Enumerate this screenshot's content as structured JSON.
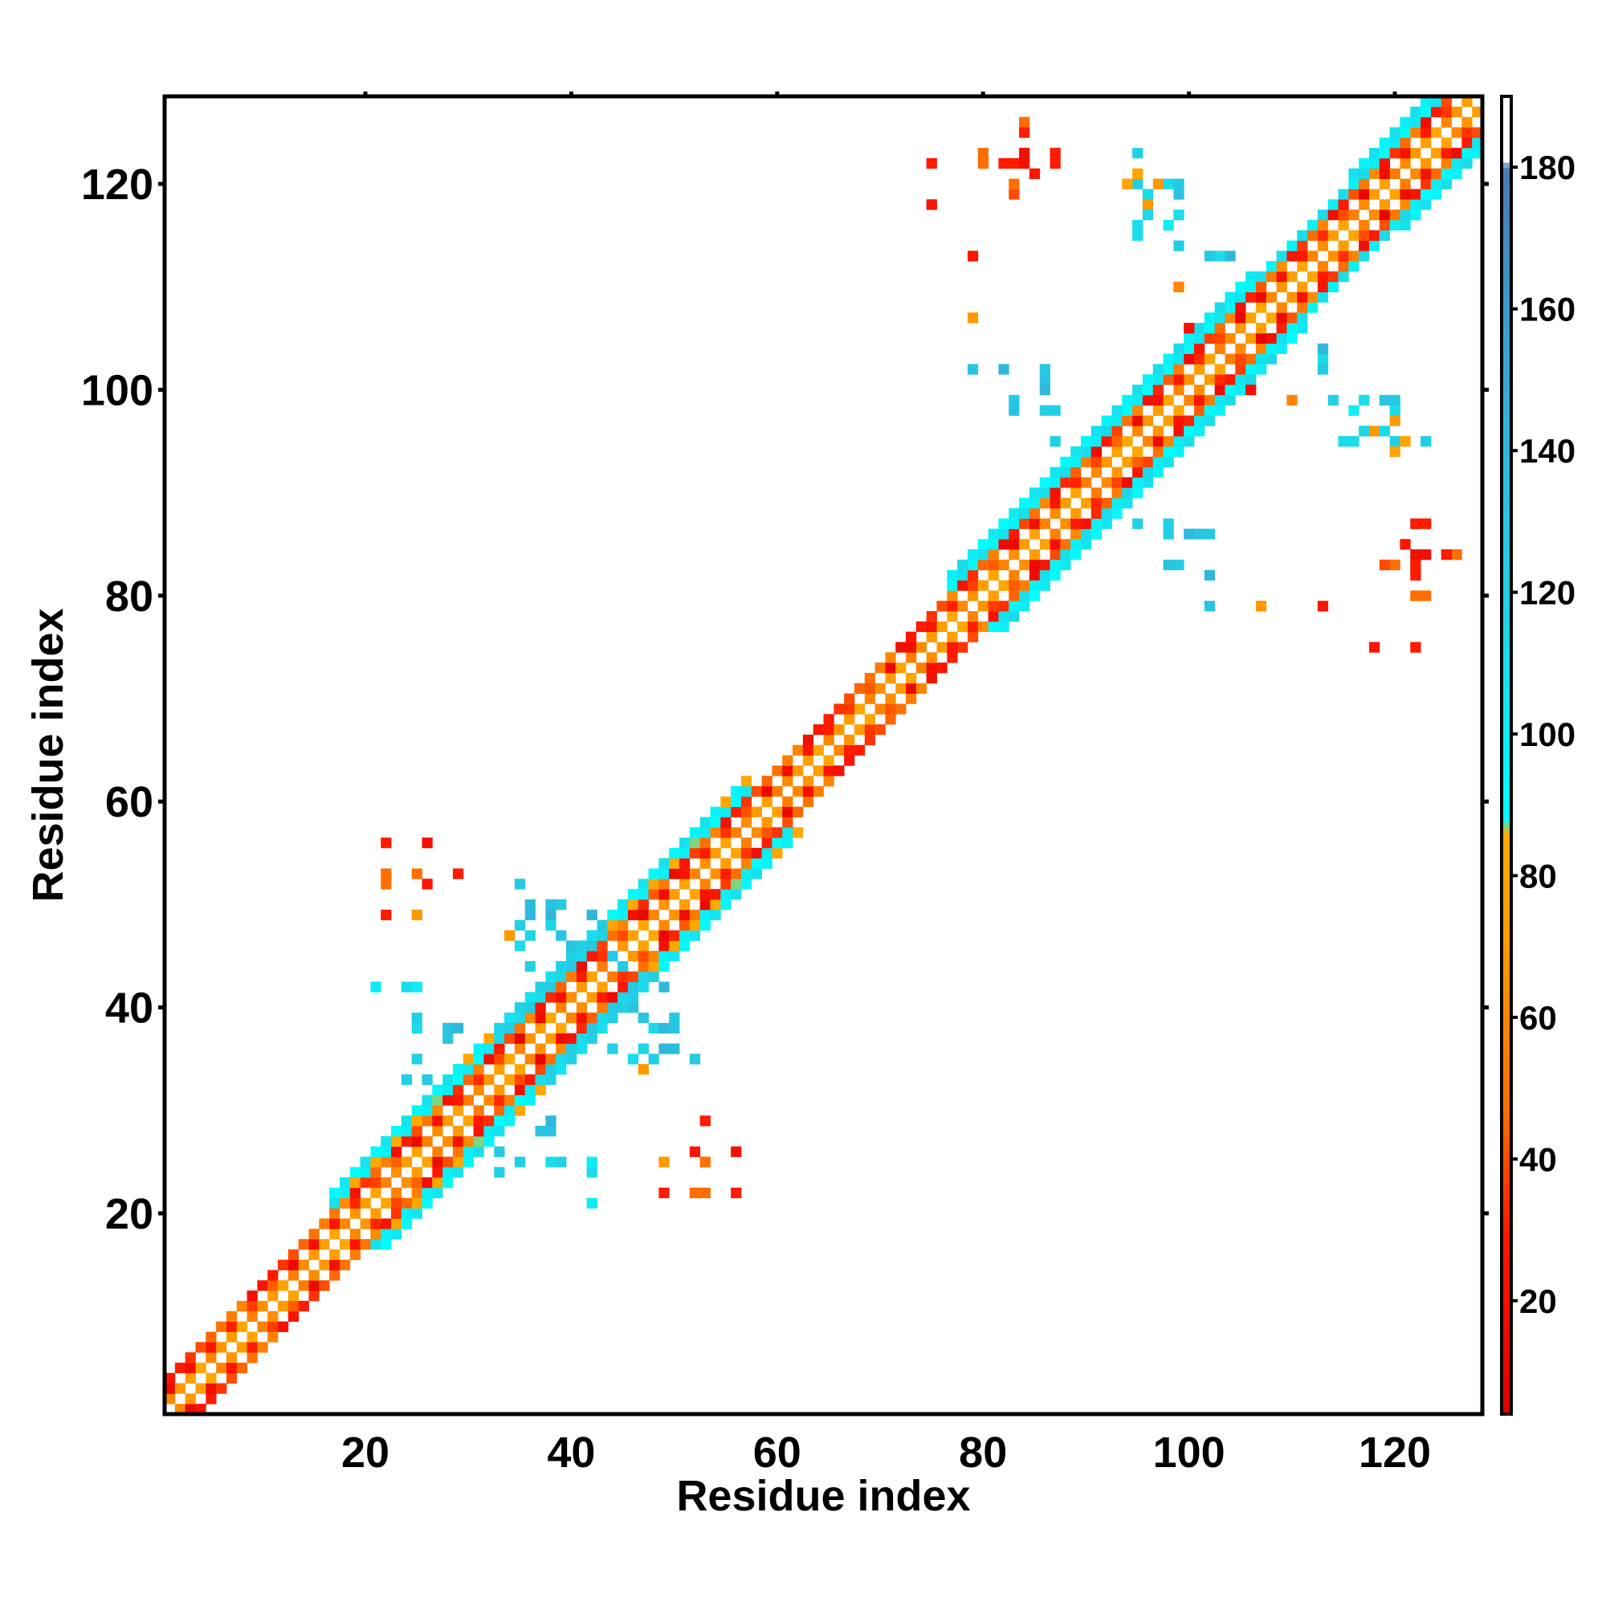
{
  "chart_data": {
    "type": "heatmap",
    "title": "",
    "xlabel": "Residue index",
    "ylabel": "Residue index",
    "xlim": [
      1,
      128
    ],
    "ylim": [
      1,
      128
    ],
    "xticks": [
      20,
      40,
      60,
      80,
      100,
      120
    ],
    "yticks": [
      20,
      40,
      60,
      80,
      100,
      120
    ],
    "grid": false,
    "symmetric": true,
    "colorbar": {
      "min": 4,
      "max": 190,
      "ticks": [
        20,
        40,
        60,
        80,
        100,
        120,
        140,
        160,
        180
      ],
      "stops": [
        {
          "value": 4,
          "color": "#e00000"
        },
        {
          "value": 30,
          "color": "#ff1a00"
        },
        {
          "value": 46,
          "color": "#ff6a00"
        },
        {
          "value": 70,
          "color": "#ff9900"
        },
        {
          "value": 86,
          "color": "#ffaa00"
        },
        {
          "value": 88,
          "color": "#00ffff"
        },
        {
          "value": 110,
          "color": "#1adcea"
        },
        {
          "value": 140,
          "color": "#30b8dc"
        },
        {
          "value": 180,
          "color": "#4a7ab0"
        },
        {
          "value": 181,
          "color": "#ffffff"
        },
        {
          "value": 190,
          "color": "#ffffff"
        }
      ]
    },
    "diagonal_bands": [
      {
        "from": 1,
        "to": 17,
        "width": 3,
        "value": 45
      },
      {
        "from": 17,
        "to": 33,
        "width": 5,
        "value": 95
      },
      {
        "from": 33,
        "to": 44,
        "width": 5,
        "value": 115
      },
      {
        "from": 44,
        "to": 57,
        "width": 5,
        "value": 95
      },
      {
        "from": 57,
        "to": 77,
        "width": 3,
        "value": 40
      },
      {
        "from": 77,
        "to": 92,
        "width": 5,
        "value": 100
      },
      {
        "from": 92,
        "to": 106,
        "width": 5,
        "value": 100
      },
      {
        "from": 106,
        "to": 116,
        "width": 4,
        "value": 100
      },
      {
        "from": 116,
        "to": 128,
        "width": 5,
        "value": 100
      }
    ],
    "points": [
      [
        22,
        56,
        30
      ],
      [
        26,
        56,
        25
      ],
      [
        22,
        53,
        48
      ],
      [
        25,
        53,
        25
      ],
      [
        26,
        52,
        20
      ],
      [
        29,
        53,
        40
      ],
      [
        22,
        49,
        30
      ],
      [
        25,
        49,
        48
      ],
      [
        36,
        50,
        135
      ],
      [
        39,
        50,
        125
      ],
      [
        35,
        48,
        120
      ],
      [
        38,
        48,
        115
      ],
      [
        42,
        49,
        140
      ],
      [
        35,
        46,
        110
      ],
      [
        40,
        46,
        130
      ],
      [
        21,
        42,
        100
      ],
      [
        24,
        42,
        110
      ],
      [
        25,
        42,
        100
      ],
      [
        25,
        39,
        120
      ],
      [
        28,
        38,
        130
      ],
      [
        29,
        38,
        140
      ],
      [
        25,
        35,
        115
      ],
      [
        24,
        33,
        120
      ],
      [
        26,
        33,
        130
      ],
      [
        45,
        40,
        120
      ],
      [
        47,
        39,
        130
      ],
      [
        49,
        38,
        140
      ],
      [
        50,
        38,
        130
      ],
      [
        44,
        36,
        120
      ],
      [
        47,
        36,
        115
      ],
      [
        49,
        36,
        140
      ],
      [
        52,
        35,
        125
      ],
      [
        47,
        34,
        70
      ],
      [
        44,
        45,
        125
      ],
      [
        49,
        42,
        140
      ],
      [
        33,
        26,
        125
      ],
      [
        35,
        25,
        120
      ],
      [
        38,
        25,
        110
      ],
      [
        42,
        25,
        100
      ],
      [
        42,
        21,
        100
      ],
      [
        37,
        28,
        130
      ],
      [
        53,
        29,
        30
      ],
      [
        52,
        26,
        25
      ],
      [
        53,
        25,
        48
      ],
      [
        56,
        26,
        20
      ],
      [
        49,
        25,
        70
      ],
      [
        49,
        22,
        30
      ],
      [
        52,
        22,
        48
      ],
      [
        56,
        22,
        30
      ],
      [
        75,
        122,
        25
      ],
      [
        80,
        122,
        48
      ],
      [
        83,
        122,
        30
      ],
      [
        84,
        122,
        20
      ],
      [
        87,
        123,
        30
      ],
      [
        84,
        126,
        40
      ],
      [
        85,
        121,
        25
      ],
      [
        83,
        119,
        40
      ],
      [
        75,
        118,
        20
      ],
      [
        79,
        113,
        25
      ],
      [
        79,
        107,
        70
      ],
      [
        79,
        102,
        120
      ],
      [
        82,
        102,
        110
      ],
      [
        86,
        102,
        130
      ],
      [
        83,
        99,
        130
      ],
      [
        86,
        98,
        120
      ],
      [
        87,
        98,
        115
      ],
      [
        86,
        100,
        140
      ],
      [
        95,
        123,
        130
      ],
      [
        95,
        120,
        120
      ],
      [
        98,
        120,
        110
      ],
      [
        99,
        120,
        125
      ],
      [
        95,
        116,
        110
      ],
      [
        98,
        116,
        100
      ],
      [
        99,
        114,
        110
      ],
      [
        102,
        113,
        125
      ],
      [
        103,
        113,
        110
      ],
      [
        94,
        120,
        80
      ],
      [
        96,
        118,
        70
      ],
      [
        99,
        110,
        60
      ],
      [
        106,
        100,
        20
      ],
      [
        113,
        102,
        125
      ],
      [
        114,
        99,
        120
      ],
      [
        117,
        99,
        110
      ],
      [
        119,
        99,
        130
      ],
      [
        117,
        96,
        115
      ],
      [
        119,
        96,
        110
      ],
      [
        120,
        97,
        70
      ],
      [
        123,
        95,
        120
      ],
      [
        121,
        95,
        80
      ],
      [
        115,
        95,
        110
      ],
      [
        113,
        104,
        140
      ],
      [
        95,
        87,
        120
      ],
      [
        98,
        87,
        120
      ],
      [
        101,
        86,
        130
      ],
      [
        102,
        86,
        125
      ],
      [
        98,
        83,
        130
      ],
      [
        99,
        83,
        125
      ],
      [
        102,
        82,
        140
      ],
      [
        102,
        79,
        130
      ],
      [
        107,
        79,
        70
      ],
      [
        113,
        79,
        25
      ],
      [
        122,
        87,
        30
      ],
      [
        120,
        83,
        48
      ],
      [
        123,
        84,
        20
      ],
      [
        122,
        82,
        30
      ],
      [
        125,
        84,
        30
      ],
      [
        126,
        84,
        48
      ],
      [
        122,
        80,
        48
      ],
      [
        123,
        80,
        48
      ],
      [
        118,
        75,
        25
      ],
      [
        122,
        75,
        30
      ]
    ]
  }
}
